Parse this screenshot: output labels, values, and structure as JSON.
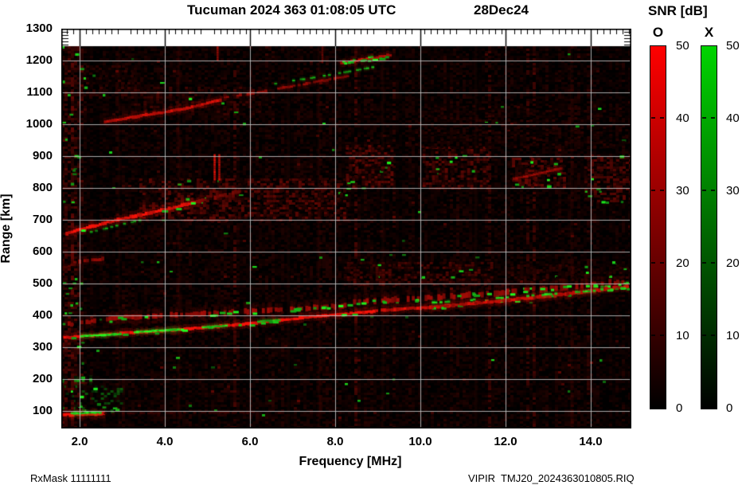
{
  "header": {
    "title": "Tucuman 2024 363 01:08:05 UTC",
    "date": "28Dec24"
  },
  "footer": {
    "rx_mask": "RxMask 11111111",
    "file": "VIPIR  TMJ20_2024363010805.RIQ"
  },
  "legend": {
    "title": "SNR [dB]",
    "o_label": "O",
    "x_label": "X",
    "ticks": [
      50,
      40,
      30,
      20,
      10,
      0
    ],
    "tick_labels": [
      "50",
      "40",
      "30",
      "20",
      "10",
      "0"
    ],
    "o_color": "#ff0000",
    "x_color": "#00d400",
    "min_color": "#000000"
  },
  "chart_data": {
    "type": "heatmap",
    "title": "Tucuman 2024 363 01:08:05 UTC",
    "date_label": "28Dec24",
    "xlabel": "Frequency [MHz]",
    "ylabel": "Range [km]",
    "xlim": [
      1.57,
      14.95
    ],
    "ylim": [
      45,
      1300
    ],
    "data_max_range_km": 1245,
    "snr_range_db": [
      0,
      50
    ],
    "modes": [
      "O",
      "X"
    ],
    "grid": true,
    "xticks": [
      2.0,
      4.0,
      6.0,
      8.0,
      10.0,
      12.0,
      14.0
    ],
    "xtick_labels": [
      "2.0",
      "4.0",
      "6.0",
      "8.0",
      "10.0",
      "12.0",
      "14.0"
    ],
    "yticks": [
      100,
      200,
      300,
      400,
      500,
      600,
      700,
      800,
      900,
      1000,
      1100,
      1200,
      1300
    ],
    "ytick_labels": [
      "100",
      "200",
      "300",
      "400",
      "500",
      "600",
      "700",
      "800",
      "900",
      "1000",
      "1100",
      "1200",
      "1300"
    ],
    "echo_traces": [
      {
        "mode": "O",
        "snr": 50,
        "width_km": 9,
        "style": "solid",
        "points": [
          [
            1.6,
            88
          ],
          [
            2.6,
            92
          ]
        ]
      },
      {
        "mode": "X",
        "snr": 40,
        "width_km": 6,
        "style": "solid",
        "points": [
          [
            1.82,
            92
          ],
          [
            2.5,
            95
          ]
        ]
      },
      {
        "mode": "O",
        "snr": 11,
        "width_km": 5,
        "style": "patchy",
        "points": [
          [
            2.6,
            92
          ],
          [
            6.2,
            96
          ]
        ]
      },
      {
        "mode": "X",
        "snr": 28,
        "width_km": 8,
        "style": "patchy",
        "points": [
          [
            1.6,
            194
          ],
          [
            2.35,
            198
          ]
        ]
      },
      {
        "mode": "O",
        "snr": 18,
        "width_km": 4,
        "style": "patchy",
        "points": [
          [
            1.6,
            186
          ],
          [
            2.25,
            189
          ]
        ]
      },
      {
        "mode": "O",
        "snr": 48,
        "width_km": 8,
        "style": "solid",
        "flecks": 0.12,
        "points": [
          [
            1.65,
            330
          ],
          [
            2.5,
            339
          ],
          [
            4.0,
            352
          ],
          [
            6.0,
            374
          ],
          [
            7.5,
            396
          ],
          [
            9.0,
            414
          ]
        ]
      },
      {
        "mode": "O",
        "snr": 40,
        "width_km": 9,
        "style": "solid",
        "flecks": 0.15,
        "points": [
          [
            9.1,
            416
          ],
          [
            10.5,
            428
          ],
          [
            12.0,
            447
          ],
          [
            13.3,
            466
          ],
          [
            14.9,
            490
          ]
        ]
      },
      {
        "mode": "O",
        "snr": 28,
        "width_km": 13,
        "style": "patchy",
        "flecks": 0.18,
        "points": [
          [
            1.75,
            372
          ],
          [
            3.0,
            394
          ],
          [
            5.0,
            406
          ],
          [
            6.5,
            416
          ],
          [
            8.3,
            431
          ]
        ]
      },
      {
        "mode": "O",
        "snr": 27,
        "width_km": 15,
        "style": "patchy",
        "flecks": 0.2,
        "points": [
          [
            8.45,
            442
          ],
          [
            10.3,
            456
          ],
          [
            12.0,
            472
          ],
          [
            13.2,
            487
          ],
          [
            14.9,
            507
          ]
        ]
      },
      {
        "mode": "O",
        "snr": 33,
        "width_km": 7,
        "style": "patchy",
        "points": [
          [
            10.1,
            424
          ],
          [
            12.0,
            446
          ],
          [
            13.35,
            464
          ],
          [
            14.9,
            497
          ]
        ]
      },
      {
        "mode": "X",
        "snr": 40,
        "width_km": 5,
        "style": "dashed",
        "points": [
          [
            10.3,
            440
          ],
          [
            12.5,
            461
          ],
          [
            14.2,
            479
          ],
          [
            14.9,
            503
          ]
        ]
      },
      {
        "mode": "X",
        "snr": 45,
        "width_km": 6,
        "style": "solid",
        "points": [
          [
            2.05,
            335
          ],
          [
            3.0,
            342
          ]
        ]
      },
      {
        "mode": "X",
        "snr": 45,
        "width_km": 6,
        "style": "solid",
        "points": [
          [
            3.3,
            348
          ],
          [
            4.35,
            356
          ]
        ]
      },
      {
        "mode": "X",
        "snr": 40,
        "width_km": 5,
        "style": "solid",
        "points": [
          [
            4.9,
            363
          ],
          [
            5.45,
            368
          ]
        ]
      },
      {
        "mode": "X",
        "snr": 36,
        "width_km": 5,
        "style": "solid",
        "points": [
          [
            6.2,
            381
          ],
          [
            6.7,
            386
          ]
        ]
      },
      {
        "mode": "O",
        "snr": 44,
        "width_km": 9,
        "style": "solid",
        "flecks": 0.08,
        "points": [
          [
            1.7,
            658
          ],
          [
            2.9,
            700
          ],
          [
            4.1,
            735
          ],
          [
            4.7,
            755
          ]
        ]
      },
      {
        "mode": "O",
        "snr": 22,
        "width_km": 10,
        "style": "patchy",
        "points": [
          [
            4.7,
            755
          ],
          [
            5.75,
            790
          ]
        ]
      },
      {
        "mode": "X",
        "snr": 30,
        "width_km": 4,
        "style": "dashed",
        "points": [
          [
            2.15,
            658
          ],
          [
            3.45,
            700
          ]
        ]
      },
      {
        "mode": "O",
        "snr": 26,
        "width_km": 10,
        "style": "patchy",
        "points": [
          [
            1.88,
            568
          ],
          [
            2.6,
            578
          ]
        ]
      },
      {
        "mode": "O",
        "snr": 18,
        "width_km": 7,
        "style": "patchy",
        "points": [
          [
            1.57,
            550
          ],
          [
            1.9,
            560
          ]
        ]
      },
      {
        "mode": "O",
        "snr": 38,
        "width_km": 8,
        "style": "solid",
        "points": [
          [
            2.6,
            1008
          ],
          [
            3.6,
            1030
          ],
          [
            4.45,
            1048
          ],
          [
            5.3,
            1076
          ]
        ]
      },
      {
        "mode": "O",
        "snr": 26,
        "width_km": 7,
        "style": "patchy",
        "points": [
          [
            5.35,
            1082
          ],
          [
            6.6,
            1110
          ],
          [
            8.35,
            1152
          ]
        ]
      },
      {
        "mode": "X",
        "snr": 34,
        "width_km": 4,
        "style": "dashed",
        "points": [
          [
            6.6,
            1128
          ],
          [
            7.55,
            1148
          ],
          [
            8.95,
            1180
          ]
        ]
      },
      {
        "mode": "O",
        "snr": 36,
        "width_km": 8,
        "style": "solid",
        "flecks": 0.5,
        "points": [
          [
            8.15,
            1192
          ],
          [
            9.35,
            1218
          ]
        ]
      },
      {
        "mode": "X",
        "snr": 38,
        "width_km": 4,
        "style": "dashed",
        "points": [
          [
            8.2,
            1196
          ],
          [
            9.0,
            1214
          ]
        ]
      },
      {
        "mode": "O",
        "snr": 28,
        "width_km": 6,
        "style": "solid",
        "points": [
          [
            12.2,
            828
          ],
          [
            13.3,
            862
          ]
        ]
      }
    ],
    "diffuse_patches": [
      {
        "f": [
          3.4,
          8.3
        ],
        "km": [
          695,
          830
        ],
        "snr": 15,
        "density": 0.45,
        "mode": "O",
        "flecks": 6
      },
      {
        "f": [
          8.25,
          9.35
        ],
        "km": [
          800,
          935
        ],
        "snr": 16,
        "density": 0.5,
        "mode": "O",
        "flecks": 6
      },
      {
        "f": [
          10.05,
          11.55
        ],
        "km": [
          795,
          930
        ],
        "snr": 15,
        "density": 0.5,
        "mode": "O",
        "flecks": 6
      },
      {
        "f": [
          12.15,
          13.35
        ],
        "km": [
          798,
          895
        ],
        "snr": 16,
        "density": 0.55,
        "mode": "O",
        "flecks": 7
      },
      {
        "f": [
          13.85,
          14.95
        ],
        "km": [
          755,
          905
        ],
        "snr": 14,
        "density": 0.5,
        "mode": "O",
        "flecks": 8
      },
      {
        "f": [
          8.2,
          11.65
        ],
        "km": [
          500,
          568
        ],
        "snr": 13,
        "density": 0.45,
        "mode": "O",
        "flecks": 4
      },
      {
        "f": [
          11.9,
          14.95
        ],
        "km": [
          498,
          560
        ],
        "snr": 9,
        "density": 0.35,
        "mode": "O",
        "flecks": 3
      },
      {
        "f": [
          3.2,
          6.3
        ],
        "km": [
          1035,
          1118
        ],
        "snr": 11,
        "density": 0.4,
        "mode": "O",
        "flecks": 3
      },
      {
        "f": [
          1.85,
          3.45
        ],
        "km": [
          1085,
          1185
        ],
        "snr": 9,
        "density": 0.35,
        "mode": "O",
        "flecks": 2
      },
      {
        "f": [
          9.8,
          14.95
        ],
        "km": [
          930,
          1060
        ],
        "snr": 7,
        "density": 0.3,
        "mode": "O",
        "flecks": 4
      },
      {
        "f": [
          1.6,
          2.95
        ],
        "km": [
          95,
          180
        ],
        "snr": 14,
        "density": 0.18,
        "mode": "X",
        "flecks": 10
      },
      {
        "f": [
          1.57,
          2.05
        ],
        "km": [
          45,
          1245
        ],
        "snr": 13,
        "density": 0.35,
        "mode": "O",
        "flecks": 30
      }
    ],
    "interference_stripes": [
      {
        "mhz": 5.17,
        "km": [
          826,
          906
        ],
        "snr": 42
      },
      {
        "mhz": 5.28,
        "km": [
          826,
          906
        ],
        "snr": 36
      },
      {
        "mhz": 5.24,
        "km": [
          1203,
          1244
        ],
        "snr": 34
      },
      {
        "mhz": 7.7,
        "km": [
          1195,
          1244
        ],
        "snr": 20
      },
      {
        "mhz": 4.33,
        "km": [
          45,
          1245
        ],
        "snr": 6
      },
      {
        "mhz": 2.92,
        "km": [
          45,
          1245
        ],
        "snr": 4
      },
      {
        "mhz": 6.9,
        "km": [
          45,
          1245
        ],
        "snr": 5
      },
      {
        "mhz": 7.62,
        "km": [
          45,
          1245
        ],
        "snr": 6
      },
      {
        "mhz": 9.12,
        "km": [
          45,
          1245
        ],
        "snr": 5
      },
      {
        "mhz": 11.3,
        "km": [
          45,
          1245
        ],
        "snr": 5
      },
      {
        "mhz": 13.55,
        "km": [
          45,
          1245
        ],
        "snr": 5
      }
    ]
  }
}
